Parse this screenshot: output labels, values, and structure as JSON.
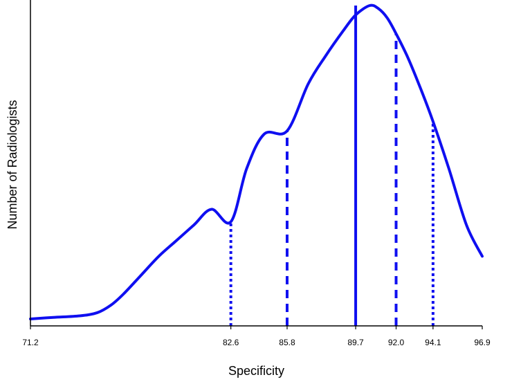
{
  "chart_data": {
    "type": "line",
    "title": "",
    "xlabel": "Specificity",
    "ylabel": "Number of Radiologists",
    "xlim": [
      71.2,
      96.9
    ],
    "ylim": [
      0,
      1
    ],
    "grid": false,
    "x_ticks": [
      71.2,
      82.6,
      85.8,
      89.7,
      92.0,
      94.1,
      96.9
    ],
    "x_tick_labels": [
      "71.2",
      "82.6",
      "85.8",
      "89.7",
      "92.0",
      "94.1",
      "96.9"
    ],
    "series": [
      {
        "x": [
          71.2,
          72.5,
          74.0,
          75.0,
          75.8,
          76.5,
          77.5,
          78.5,
          79.5,
          80.5,
          81.5,
          82.6,
          83.5,
          84.5,
          85.8,
          87.0,
          88.0,
          89.0,
          89.7,
          90.5,
          91.0,
          91.5,
          92.0,
          92.7,
          93.5,
          94.1,
          95.0,
          96.0,
          96.9
        ],
        "values": [
          0.0,
          0.005,
          0.01,
          0.02,
          0.045,
          0.08,
          0.14,
          0.2,
          0.25,
          0.3,
          0.35,
          0.31,
          0.48,
          0.59,
          0.6,
          0.75,
          0.84,
          0.92,
          0.97,
          1.0,
          0.99,
          0.96,
          0.91,
          0.83,
          0.72,
          0.63,
          0.48,
          0.3,
          0.2
        ]
      }
    ],
    "reference_lines": [
      {
        "x": 82.6,
        "style": "dotted",
        "height": 0.31
      },
      {
        "x": 85.8,
        "style": "dashed",
        "height": 0.6
      },
      {
        "x": 89.7,
        "style": "solid",
        "height": 1.0
      },
      {
        "x": 92.0,
        "style": "dashed",
        "height": 0.91
      },
      {
        "x": 94.1,
        "style": "dotted",
        "height": 0.63
      }
    ],
    "colors": {
      "line": "#0f0ff0",
      "axis": "#000000",
      "text": "#000000"
    }
  }
}
